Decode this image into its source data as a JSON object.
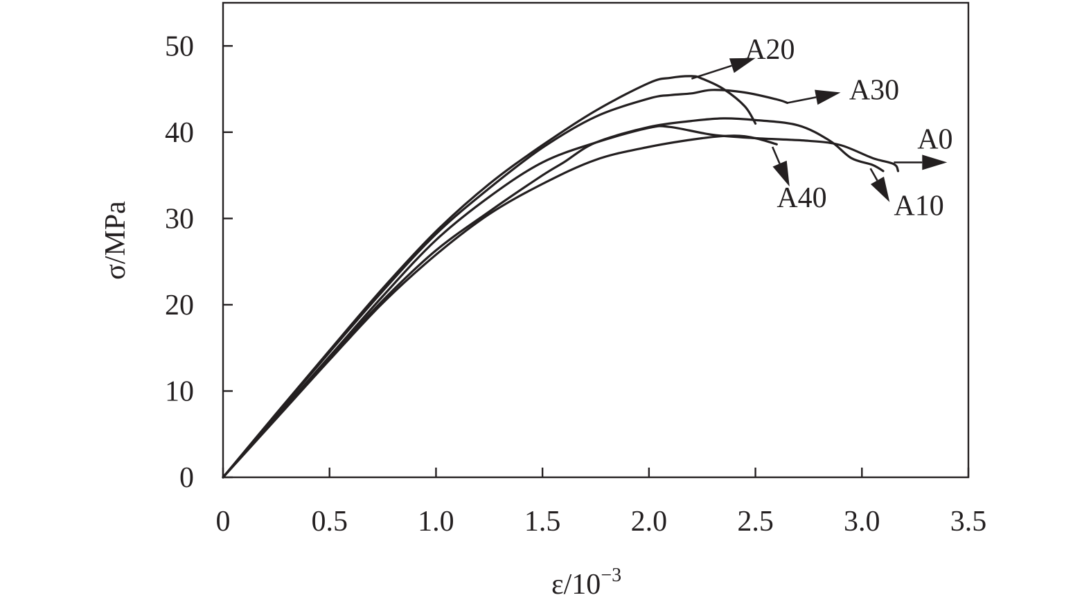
{
  "chart_data": {
    "type": "line",
    "xlabel_main": "ε/10",
    "xlabel_sup": "−3",
    "ylabel": "σ/MPa",
    "xlim": [
      0,
      3.5
    ],
    "ylim": [
      0,
      55
    ],
    "xticks": [
      0,
      0.5,
      1.0,
      1.5,
      2.0,
      2.5,
      3.0,
      3.5
    ],
    "xtick_labels": [
      "0",
      "0.5",
      "1.0",
      "1.5",
      "2.0",
      "2.5",
      "3.0",
      "3.5"
    ],
    "yticks": [
      0,
      10,
      20,
      30,
      40,
      50
    ],
    "ytick_labels": [
      "0",
      "10",
      "20",
      "30",
      "40",
      "50"
    ],
    "grid": false,
    "series": [
      {
        "name": "A0",
        "x": [
          0,
          0.25,
          0.5,
          0.75,
          1.0,
          1.25,
          1.5,
          1.75,
          2.0,
          2.1,
          2.3,
          2.5,
          2.75,
          2.9,
          3.05,
          3.15,
          3.17
        ],
        "y": [
          0,
          7,
          14,
          21,
          27.5,
          32.5,
          36.5,
          38.8,
          40.5,
          40.6,
          39.7,
          39.3,
          39.0,
          38.5,
          37.0,
          36.3,
          35.5
        ]
      },
      {
        "name": "A10",
        "x": [
          0,
          0.25,
          0.5,
          0.75,
          1.0,
          1.25,
          1.5,
          1.6,
          1.75,
          2.0,
          2.2,
          2.35,
          2.5,
          2.7,
          2.85,
          2.95,
          3.05,
          3.1
        ],
        "y": [
          0,
          7,
          13.8,
          20.5,
          26.3,
          30.8,
          35.0,
          36.5,
          38.8,
          40.6,
          41.3,
          41.6,
          41.4,
          40.8,
          39.0,
          37.0,
          36.2,
          35.5
        ]
      },
      {
        "name": "A20",
        "x": [
          0,
          0.25,
          0.5,
          0.75,
          1.0,
          1.25,
          1.5,
          1.75,
          2.0,
          2.1,
          2.2,
          2.25,
          2.35,
          2.45,
          2.5
        ],
        "y": [
          0,
          7.4,
          14.7,
          21.9,
          28.5,
          34.0,
          38.5,
          42.5,
          45.7,
          46.3,
          46.5,
          46.2,
          45.0,
          43.0,
          41.0
        ]
      },
      {
        "name": "A30",
        "x": [
          0,
          0.25,
          0.5,
          0.75,
          1.0,
          1.25,
          1.5,
          1.75,
          2.0,
          2.1,
          2.2,
          2.3,
          2.45,
          2.6,
          2.65
        ],
        "y": [
          0,
          7.3,
          14.5,
          21.6,
          28.2,
          33.5,
          38.2,
          41.8,
          43.9,
          44.3,
          44.5,
          44.9,
          44.6,
          43.8,
          43.4
        ]
      },
      {
        "name": "A40",
        "x": [
          0,
          0.25,
          0.5,
          0.75,
          1.0,
          1.25,
          1.5,
          1.75,
          2.0,
          2.25,
          2.4,
          2.5,
          2.6
        ],
        "y": [
          0,
          6.8,
          13.6,
          20.2,
          25.8,
          30.5,
          34.0,
          36.8,
          38.3,
          39.3,
          39.6,
          39.3,
          38.6
        ]
      }
    ],
    "annotations": [
      {
        "label": "A20",
        "from": [
          2.2,
          46.2
        ],
        "to": [
          2.5,
          48.6
        ],
        "text_at": [
          2.45,
          48.5
        ]
      },
      {
        "label": "A30",
        "from": [
          2.65,
          43.4
        ],
        "to": [
          2.9,
          44.6
        ],
        "text_at": [
          2.94,
          43.8
        ]
      },
      {
        "label": "A0",
        "from": [
          3.15,
          36.5
        ],
        "to": [
          3.4,
          36.5
        ],
        "text_at": [
          3.26,
          38.1
        ]
      },
      {
        "label": "A40",
        "from": [
          2.58,
          38.3
        ],
        "to": [
          2.66,
          33.7
        ],
        "text_at": [
          2.6,
          31.3
        ]
      },
      {
        "label": "A10",
        "from": [
          3.04,
          35.8
        ],
        "to": [
          3.13,
          31.9
        ],
        "text_at": [
          3.15,
          30.4
        ]
      }
    ]
  }
}
